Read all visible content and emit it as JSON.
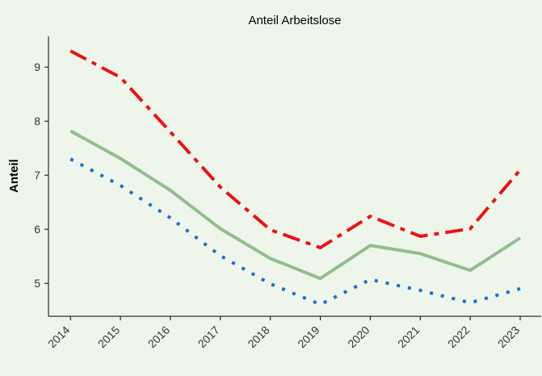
{
  "chart_data": {
    "type": "line",
    "title": "Anteil Arbeitslose",
    "y_label": "Anteil",
    "x": [
      2014,
      2015,
      2016,
      2017,
      2018,
      2019,
      2020,
      2021,
      2022,
      2023
    ],
    "xlim": [
      2013.56,
      2023.42
    ],
    "xticks": [
      2014,
      2015,
      2016,
      2017,
      2018,
      2019,
      2020,
      2021,
      2022,
      2023
    ],
    "ylim": [
      4.39,
      9.57
    ],
    "yticks": [
      5,
      6,
      7,
      8,
      9
    ],
    "series": [
      {
        "color": "#ee1111",
        "style": "dashdot",
        "values": [
          9.3,
          8.81,
          7.8,
          6.78,
          5.99,
          5.66,
          6.24,
          5.87,
          6.01,
          7.1
        ]
      },
      {
        "color": "#93bd8e",
        "style": "solid",
        "values": [
          7.82,
          7.31,
          6.72,
          6.01,
          5.46,
          5.09,
          5.7,
          5.55,
          5.24,
          5.84
        ]
      },
      {
        "color": "#1f6fc5",
        "style": "dotted",
        "values": [
          7.3,
          6.81,
          6.21,
          5.51,
          4.99,
          4.61,
          5.07,
          4.87,
          4.64,
          4.9
        ]
      }
    ]
  }
}
